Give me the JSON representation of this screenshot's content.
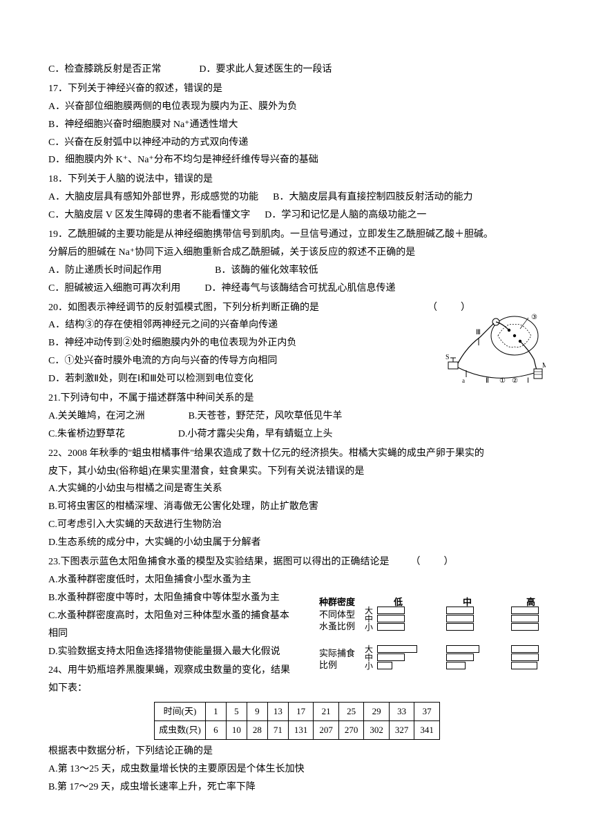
{
  "q16": {
    "C": "C．检查膝跳反射是否正常",
    "D": "D．要求此人复述医生的一段话"
  },
  "q17": {
    "stem": "17．下列关于神经兴奋的叙述，错误的是",
    "A": "A．兴奋部位细胞膜两侧的电位表现为膜内为正、膜外为负",
    "B": "B．神经细胞兴奋时细胞膜对 Na⁺通透性增大",
    "C": "C．兴奋在反射弧中以神经冲动的方式双向传递",
    "D": "D．细胞膜内外 K⁺、Na⁺分布不均匀是神经纤维传导兴奋的基础"
  },
  "q18": {
    "stem": "18．下列关于人脑的说法中，错误的是",
    "A": "A．大脑皮层具有感知外部世界，形成感觉的功能",
    "B": "B．大脑皮层具有直接控制四肢反射活动的能力",
    "C": "C．大脑皮层 V 区发生障碍的患者不能看懂文字",
    "D": "D．学习和记忆是人脑的高级功能之一"
  },
  "q19": {
    "stem1": "19．乙酰胆碱的主要功能是从神经细胞携带信号到肌肉。一旦信号通过，立即发生乙酰胆碱乙酸＋胆碱。",
    "stem2": "分解后的胆碱在 Na⁺协同下运入细胞重新合成乙酰胆碱，关于该反应的叙述不正确的是",
    "A": "A．防止递质长时间起作用",
    "B": "B．该酶的催化效率较低",
    "C": "C．胆碱被运入细胞可再次利用",
    "D": "D．神经毒气与该酶结合可扰乱心肌信息传递"
  },
  "q20": {
    "stem": "20．如图表示神经调节的反射弧模式图，下列分析判断正确的是",
    "paren": "（　　）",
    "A": "A．结构③的存在使相邻两神经元之间的兴奋单向传递",
    "B": "B．神经冲动传到②处时细胞膜内外的电位表现为外正内负",
    "C": "C．①处兴奋时膜外电流的方向与兴奋的传导方向相同",
    "D": "D．若刺激Ⅱ处，则在Ⅰ和Ⅲ处可以检测到电位变化"
  },
  "q21": {
    "stem": "21.下列诗句中，不属于描述群落中种间关系的是",
    "A": "A.关关雎鸠，在河之洲",
    "B": "B.天苍苍，野茫茫，风吹草低见牛羊",
    "C": "C.朱雀桥边野草花",
    "D": "D.小荷才露尖尖角，早有蜻蜓立上头"
  },
  "q22": {
    "stem1": "22、2008 年秋季的\"蛆虫柑橘事件\"给果农造成了数十亿元的经济损失。柑橘大实蝇的成虫产卵于果实的",
    "stem2": "皮下，其小幼虫(俗称蛆)在果实里潜食，蛀食果实。下列有关说法错误的是",
    "A": "A.大实蝇的小幼虫与柑橘之间是寄生关系",
    "B": "B.可将虫害区的柑橘深埋、消毒做无公害化处理，防止扩散危害",
    "C": "C.可考虑引入大实蝇的天敌进行生物防治",
    "D": "D.生态系统的成分中，大实蝇的小幼虫属于分解者"
  },
  "q23": {
    "stem": "23.下图表示蓝色太阳鱼捕食水蚤的模型及实验结果，据图可以得出的正确结论是",
    "paren": "（　　）",
    "A": "A.水蚤种群密度低时，太阳鱼捕食小型水蚤为主",
    "B": "B.水蚤种群密度中等时，太阳鱼捕食中等体型水蚤为主",
    "C": "C.水蚤种群密度高时，太阳鱼对三种体型水蚤的捕食基本",
    "Ccont": "相同",
    "D": "D.实验数据支持太阳鱼选择猎物使能量摄入最大化假说",
    "chart": {
      "density_hdr": "种群密度",
      "cols": [
        "低",
        "中",
        "高"
      ],
      "row1": "不同体型\n水蚤比例",
      "row2": "实际捕食\n比例",
      "sizes": [
        "大",
        "中",
        "小"
      ],
      "proportion_bars": {
        "low": [
          40,
          40,
          40
        ],
        "mid": [
          40,
          40,
          40
        ],
        "high": [
          40,
          40,
          40
        ]
      },
      "feeding_bars": {
        "low": [
          58,
          40,
          22
        ],
        "mid": [
          48,
          40,
          28
        ],
        "high": [
          40,
          40,
          38
        ]
      }
    }
  },
  "q24": {
    "stem1": "24、用牛奶瓶培养黑腹果蝇，观察成虫数量的变化，结果",
    "stem2": "如下表：",
    "table": {
      "h1": "时间(天)",
      "h2": "成虫数(只)",
      "days": [
        "1",
        "5",
        "9",
        "13",
        "17",
        "21",
        "25",
        "29",
        "33",
        "37"
      ],
      "counts": [
        "6",
        "10",
        "28",
        "71",
        "131",
        "207",
        "270",
        "302",
        "327",
        "341"
      ]
    },
    "tail": "根据表中数据分析，下列结论正确的是",
    "A": "A.第 13～25 天，成虫数量增长快的主要原因是个体生长加快",
    "B": "B.第 17～29 天，成虫增长速率上升，死亡率下降"
  },
  "fig20_labels": {
    "S": "S",
    "M": "M",
    "a": "a",
    "I": "Ⅰ",
    "II": "Ⅱ",
    "III": "Ⅲ",
    "n1": "①",
    "n2": "②",
    "n3": "③"
  }
}
